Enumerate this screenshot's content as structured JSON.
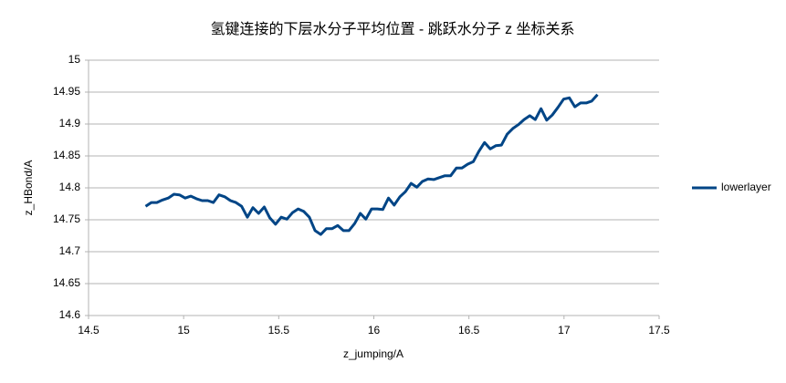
{
  "chart_data": {
    "type": "line",
    "title": "氢键连接的下层水分子平均位置 - 跳跃水分子 z 坐标关系",
    "x_label": "z_jumping/A",
    "y_label": "z_HBond/A",
    "x": [
      14.8,
      14.83,
      14.859,
      14.889,
      14.919,
      14.949,
      14.978,
      15.008,
      15.038,
      15.067,
      15.097,
      15.127,
      15.156,
      15.186,
      15.216,
      15.246,
      15.275,
      15.305,
      15.335,
      15.364,
      15.394,
      15.424,
      15.453,
      15.483,
      15.513,
      15.543,
      15.572,
      15.602,
      15.632,
      15.661,
      15.691,
      15.721,
      15.75,
      15.78,
      15.81,
      15.84,
      15.869,
      15.899,
      15.929,
      15.958,
      15.988,
      16.018,
      16.047,
      16.077,
      16.107,
      16.137,
      16.166,
      16.196,
      16.226,
      16.255,
      16.285,
      16.315,
      16.344,
      16.374,
      16.404,
      16.434,
      16.463,
      16.493,
      16.523,
      16.552,
      16.582,
      16.612,
      16.641,
      16.671,
      16.701,
      16.731,
      16.76,
      16.79,
      16.82,
      16.849,
      16.879,
      16.909,
      16.938,
      16.968,
      16.998,
      17.028,
      17.057,
      17.087,
      17.117,
      17.146,
      17.176
    ],
    "series": [
      {
        "name": "lowerlayer",
        "color": "#004586",
        "values": [
          14.771,
          14.777,
          14.777,
          14.781,
          14.784,
          14.79,
          14.789,
          14.784,
          14.787,
          14.783,
          14.78,
          14.78,
          14.777,
          14.789,
          14.786,
          14.78,
          14.777,
          14.771,
          14.754,
          14.769,
          14.76,
          14.77,
          14.753,
          14.743,
          14.754,
          14.751,
          14.761,
          14.767,
          14.763,
          14.754,
          14.733,
          14.727,
          14.736,
          14.736,
          14.741,
          14.733,
          14.733,
          14.744,
          14.76,
          14.751,
          14.767,
          14.767,
          14.766,
          14.784,
          14.773,
          14.786,
          14.794,
          14.807,
          14.801,
          14.81,
          14.814,
          14.813,
          14.816,
          14.819,
          14.819,
          14.831,
          14.831,
          14.837,
          14.841,
          14.857,
          14.871,
          14.861,
          14.866,
          14.867,
          14.884,
          14.893,
          14.899,
          14.907,
          14.913,
          14.907,
          14.924,
          14.906,
          14.914,
          14.926,
          14.939,
          14.941,
          14.927,
          14.933,
          14.933,
          14.936,
          14.946
        ]
      }
    ],
    "xlim": [
      14.5,
      17.5
    ],
    "xticks": [
      14.5,
      15,
      15.5,
      16,
      16.5,
      17,
      17.5
    ],
    "ylim": [
      14.6,
      15
    ],
    "yticks": [
      14.6,
      14.65,
      14.7,
      14.75,
      14.8,
      14.85,
      14.9,
      14.95,
      15
    ],
    "grid": true,
    "legend": "right"
  }
}
